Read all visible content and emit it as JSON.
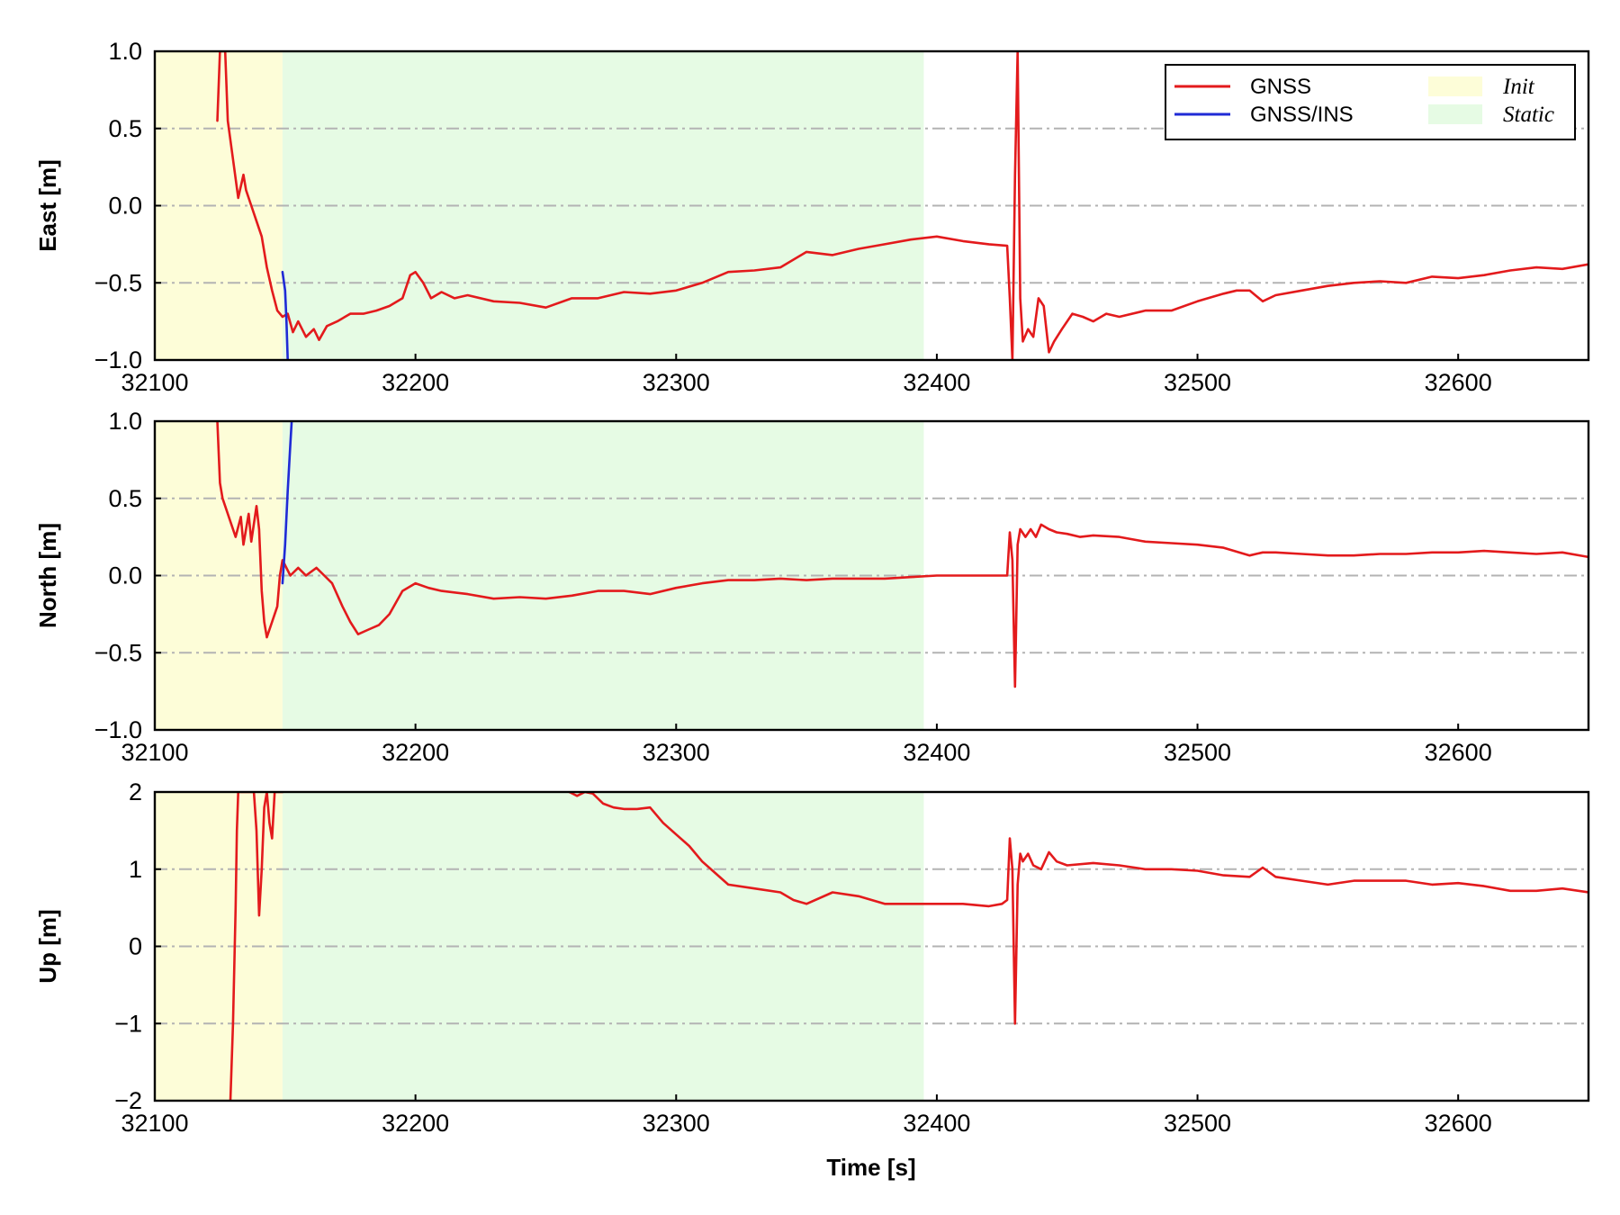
{
  "chart_data": {
    "type": "line",
    "xlabel": "Time [s]",
    "xlim": [
      32100,
      32650
    ],
    "x_ticks": [
      "32100",
      "32200",
      "32300",
      "32400",
      "32500",
      "32600"
    ],
    "x_tick_values": [
      32100,
      32200,
      32300,
      32400,
      32500,
      32600
    ],
    "grid": "horizontal dash-dot lines at y ticks",
    "legend": {
      "placement": "top-right of first panel",
      "entries": [
        {
          "label": "GNSS",
          "kind": "line",
          "color": "#e31a1c"
        },
        {
          "label": "GNSS/INS",
          "kind": "line",
          "color": "#1f2ad6"
        },
        {
          "label": "Init",
          "kind": "patch",
          "color": "#fdfdd8"
        },
        {
          "label": "Static",
          "kind": "patch",
          "color": "#e6fbe4"
        }
      ]
    },
    "shaded_regions": [
      {
        "label": "Init",
        "x": [
          32100,
          32149
        ],
        "color": "#fdfdd8"
      },
      {
        "label": "Static",
        "x": [
          32149,
          32395
        ],
        "color": "#e6fbe4"
      }
    ],
    "colors": {
      "GNSS": "#e31a1c",
      "GNSS/INS": "#1f2ad6",
      "grid": "#b3b3b3"
    },
    "panels": [
      {
        "ylabel": "East [m]",
        "ylim": [
          -1.0,
          1.0
        ],
        "y_ticks": [
          "1.0",
          "0.5",
          "0.0",
          "−0.5",
          "−1.0"
        ],
        "y_tick_values": [
          1.0,
          0.5,
          0.0,
          -0.5,
          -1.0
        ],
        "series": [
          {
            "name": "GNSS",
            "x": [
              32124,
              32125,
              32127,
              32128,
              32130,
              32132,
              32134,
              32135,
              32137,
              32139,
              32141,
              32143,
              32145,
              32147,
              32149,
              32151,
              32153,
              32155,
              32158,
              32161,
              32163,
              32166,
              32170,
              32175,
              32180,
              32185,
              32190,
              32195,
              32198,
              32200,
              32203,
              32206,
              32210,
              32215,
              32220,
              32230,
              32240,
              32250,
              32260,
              32270,
              32280,
              32290,
              32300,
              32310,
              32320,
              32330,
              32340,
              32350,
              32360,
              32370,
              32380,
              32390,
              32400,
              32410,
              32420,
              32427,
              32428,
              32429,
              32430,
              32431,
              32432,
              32433,
              32435,
              32437,
              32439,
              32441,
              32443,
              32445,
              32448,
              32452,
              32456,
              32460,
              32465,
              32470,
              32480,
              32490,
              32500,
              32510,
              32515,
              32520,
              32525,
              32530,
              32540,
              32550,
              32560,
              32570,
              32580,
              32590,
              32600,
              32610,
              32620,
              32630,
              32640,
              32650
            ],
            "y": [
              0.55,
              1.0,
              1.0,
              0.55,
              0.3,
              0.05,
              0.2,
              0.1,
              0.0,
              -0.1,
              -0.2,
              -0.4,
              -0.55,
              -0.68,
              -0.72,
              -0.7,
              -0.82,
              -0.75,
              -0.85,
              -0.8,
              -0.87,
              -0.78,
              -0.75,
              -0.7,
              -0.7,
              -0.68,
              -0.65,
              -0.6,
              -0.45,
              -0.43,
              -0.5,
              -0.6,
              -0.56,
              -0.6,
              -0.58,
              -0.62,
              -0.63,
              -0.66,
              -0.6,
              -0.6,
              -0.56,
              -0.57,
              -0.55,
              -0.5,
              -0.43,
              -0.42,
              -0.4,
              -0.3,
              -0.32,
              -0.28,
              -0.25,
              -0.22,
              -0.2,
              -0.23,
              -0.25,
              -0.26,
              -0.6,
              -1.0,
              0.2,
              1.0,
              -0.6,
              -0.88,
              -0.8,
              -0.85,
              -0.6,
              -0.65,
              -0.95,
              -0.88,
              -0.8,
              -0.7,
              -0.72,
              -0.75,
              -0.7,
              -0.72,
              -0.68,
              -0.68,
              -0.62,
              -0.57,
              -0.55,
              -0.55,
              -0.62,
              -0.58,
              -0.55,
              -0.52,
              -0.5,
              -0.49,
              -0.5,
              -0.46,
              -0.47,
              -0.45,
              -0.42,
              -0.4,
              -0.41,
              -0.38
            ]
          },
          {
            "name": "GNSS/INS",
            "x": [
              32149,
              32150,
              32150.5,
              32151
            ],
            "y": [
              -0.43,
              -0.55,
              -0.75,
              -1.0
            ]
          }
        ]
      },
      {
        "ylabel": "North [m]",
        "ylim": [
          -1.0,
          1.0
        ],
        "y_ticks": [
          "1.0",
          "0.5",
          "0.0",
          "−0.5",
          "−1.0"
        ],
        "y_tick_values": [
          1.0,
          0.5,
          0.0,
          -0.5,
          -1.0
        ],
        "series": [
          {
            "name": "GNSS",
            "x": [
              32124,
              32125,
              32126,
              32127,
              32129,
              32131,
              32133,
              32134,
              32136,
              32137,
              32139,
              32140,
              32141,
              32142,
              32143,
              32145,
              32147,
              32148,
              32149,
              32152,
              32155,
              32158,
              32162,
              32165,
              32168,
              32172,
              32175,
              32178,
              32182,
              32186,
              32190,
              32195,
              32200,
              32205,
              32210,
              32220,
              32230,
              32240,
              32250,
              32260,
              32270,
              32280,
              32290,
              32300,
              32310,
              32320,
              32330,
              32340,
              32350,
              32360,
              32370,
              32380,
              32390,
              32400,
              32410,
              32420,
              32427,
              32428,
              32429,
              32430,
              32431,
              32432,
              32434,
              32436,
              32438,
              32440,
              32443,
              32446,
              32450,
              32455,
              32460,
              32470,
              32480,
              32490,
              32500,
              32510,
              32520,
              32525,
              32530,
              32540,
              32550,
              32560,
              32570,
              32580,
              32590,
              32600,
              32610,
              32620,
              32630,
              32640,
              32650
            ],
            "y": [
              1.0,
              0.6,
              0.5,
              0.45,
              0.35,
              0.25,
              0.38,
              0.2,
              0.4,
              0.22,
              0.45,
              0.3,
              -0.1,
              -0.3,
              -0.4,
              -0.3,
              -0.2,
              0.0,
              0.1,
              0.0,
              0.05,
              0.0,
              0.05,
              0.0,
              -0.05,
              -0.2,
              -0.3,
              -0.38,
              -0.35,
              -0.32,
              -0.25,
              -0.1,
              -0.05,
              -0.08,
              -0.1,
              -0.12,
              -0.15,
              -0.14,
              -0.15,
              -0.13,
              -0.1,
              -0.1,
              -0.12,
              -0.08,
              -0.05,
              -0.03,
              -0.03,
              -0.02,
              -0.03,
              -0.02,
              -0.02,
              -0.02,
              -0.01,
              0.0,
              0.0,
              0.0,
              0.0,
              0.28,
              0.1,
              -0.72,
              0.2,
              0.3,
              0.25,
              0.3,
              0.25,
              0.33,
              0.3,
              0.28,
              0.27,
              0.25,
              0.26,
              0.25,
              0.22,
              0.21,
              0.2,
              0.18,
              0.13,
              0.15,
              0.15,
              0.14,
              0.13,
              0.13,
              0.14,
              0.14,
              0.15,
              0.15,
              0.16,
              0.15,
              0.14,
              0.15,
              0.12
            ]
          },
          {
            "name": "GNSS/INS",
            "x": [
              32149,
              32150,
              32151,
              32152,
              32152.5
            ],
            "y": [
              -0.05,
              0.2,
              0.55,
              0.85,
              1.0
            ]
          }
        ]
      },
      {
        "ylabel": "Up [m]",
        "ylim": [
          -2,
          2
        ],
        "y_ticks": [
          "2",
          "1",
          "0",
          "−1",
          "−2"
        ],
        "y_tick_values": [
          2,
          1,
          0,
          -1,
          -2
        ],
        "series": [
          {
            "name": "GNSS",
            "x": [
              32129,
              32130,
              32131,
              32131.5,
              32132,
              32133,
              32134,
              32135,
              32136,
              32137,
              32138,
              32139,
              32140,
              32141,
              32142,
              32143,
              32144,
              32145,
              32146,
              32147,
              32148,
              32149
            ],
            "y": [
              -2.0,
              -1.0,
              0.5,
              1.5,
              2.0,
              2.0,
              2.0,
              2.0,
              2.0,
              2.0,
              2.0,
              1.5,
              0.4,
              1.0,
              1.8,
              2.0,
              1.6,
              1.4,
              2.0,
              2.0,
              2.0,
              2.0
            ]
          },
          {
            "name": "GNSS",
            "x": [
              32259,
              32262,
              32265,
              32268,
              32272,
              32276,
              32280,
              32285,
              32290,
              32295,
              32300,
              32305,
              32310,
              32315,
              32320,
              32330,
              32340,
              32345,
              32350,
              32360,
              32370,
              32380,
              32390,
              32400,
              32410,
              32420,
              32425,
              32427,
              32428,
              32429,
              32430,
              32431,
              32432,
              32433,
              32435,
              32437,
              32440,
              32443,
              32446,
              32450,
              32460,
              32470,
              32480,
              32490,
              32500,
              32510,
              32520,
              32525,
              32530,
              32540,
              32550,
              32560,
              32570,
              32580,
              32590,
              32600,
              32610,
              32620,
              32630,
              32640,
              32650
            ],
            "y": [
              2.0,
              1.95,
              2.0,
              1.98,
              1.85,
              1.8,
              1.78,
              1.78,
              1.8,
              1.6,
              1.45,
              1.3,
              1.1,
              0.95,
              0.8,
              0.75,
              0.7,
              0.6,
              0.55,
              0.7,
              0.65,
              0.55,
              0.55,
              0.55,
              0.55,
              0.52,
              0.55,
              0.6,
              1.4,
              1.0,
              -1.0,
              0.8,
              1.2,
              1.1,
              1.2,
              1.05,
              1.0,
              1.22,
              1.1,
              1.05,
              1.08,
              1.05,
              1.0,
              1.0,
              0.98,
              0.92,
              0.9,
              1.02,
              0.9,
              0.85,
              0.8,
              0.85,
              0.85,
              0.85,
              0.8,
              0.82,
              0.78,
              0.72,
              0.72,
              0.75,
              0.7
            ]
          }
        ]
      }
    ]
  }
}
